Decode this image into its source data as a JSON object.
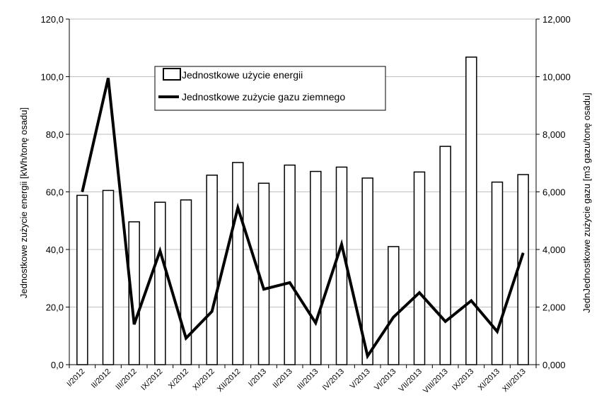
{
  "chart_data": {
    "type": "bar",
    "categories": [
      "I/2012",
      "II/2012",
      "III/2012",
      "IX/2012",
      "X/2012",
      "XI/2012",
      "XII/2012",
      "I/2013",
      "II/2013",
      "III/2013",
      "IV/2013",
      "V/2013",
      "VI/2013",
      "VII/2013",
      "VIII/2013",
      "IX/2013",
      "XI/2013",
      "XII/2013"
    ],
    "series": [
      {
        "name": "Jednostkowe użycie energii",
        "kind": "bar",
        "axis": "left",
        "values": [
          58.8,
          60.5,
          49.6,
          56.4,
          57.2,
          65.8,
          70.2,
          63.0,
          69.3,
          67.1,
          68.6,
          64.8,
          41.0,
          66.9,
          75.8,
          106.8,
          63.4,
          66.0
        ]
      },
      {
        "name": "Jednostkowe zużycie gazu ziemnego",
        "kind": "line",
        "axis": "right",
        "values": [
          6.0,
          9.95,
          1.4,
          3.95,
          0.92,
          1.85,
          5.45,
          2.62,
          2.85,
          1.45,
          4.18,
          0.3,
          1.65,
          2.5,
          1.5,
          2.22,
          1.15,
          3.88
        ]
      }
    ],
    "ylabel": "Jednostkowe zużycie energii [kWh/tonę osadu]",
    "y2label": "JednJednostkowe zużycie gazu [m3 gazu/tonę osadu]",
    "ylim": [
      0,
      120
    ],
    "y2lim": [
      0,
      12
    ],
    "yticks": [
      "0,0",
      "20,0",
      "40,0",
      "60,0",
      "80,0",
      "100,0",
      "120,0"
    ],
    "y2ticks": [
      "0,000",
      "2,000",
      "4,000",
      "6,000",
      "8,000",
      "10,000",
      "12,000"
    ],
    "grid": true,
    "legend": "top-left inside plot",
    "colors": {
      "bar_fill": "#ffffff",
      "bar_stroke": "#000000",
      "line": "#000000",
      "grid": "#bfbfbf"
    }
  }
}
